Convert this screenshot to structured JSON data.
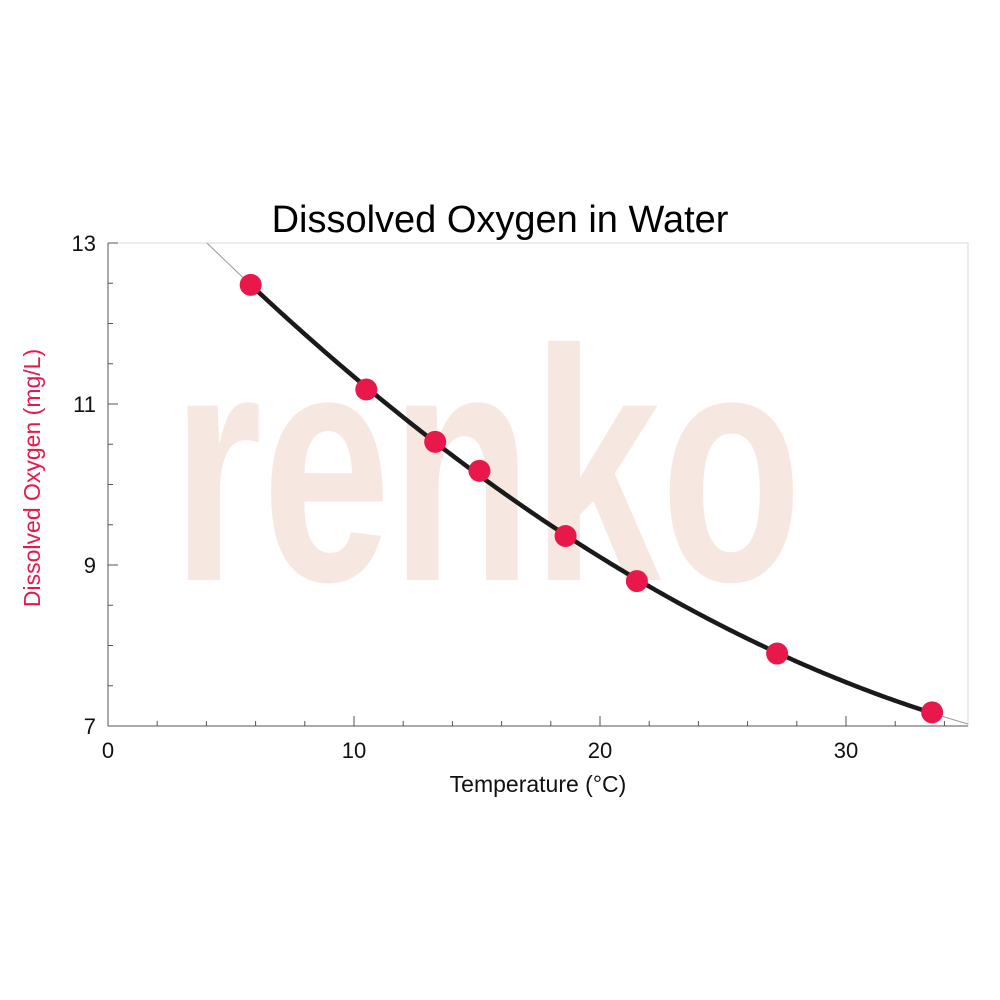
{
  "chart_data": {
    "type": "scatter",
    "title": "Dissolved Oxygen in Water",
    "xlabel": "Temperature (°C)",
    "ylabel": "Dissolved Oxygen (mg/L)",
    "xlim": [
      0,
      35
    ],
    "ylim": [
      7,
      13
    ],
    "x_ticks": [
      0,
      10,
      20,
      30
    ],
    "y_ticks": [
      7,
      9,
      11,
      13
    ],
    "grid": false,
    "watermark": "renko",
    "series": [
      {
        "x": [
          5.8,
          10.5,
          13.3,
          15.1,
          18.6,
          21.5,
          27.2,
          33.5
        ],
        "y": [
          12.48,
          11.18,
          10.53,
          10.17,
          9.36,
          8.8,
          7.9,
          7.17
        ],
        "color": "#e8194a"
      }
    ],
    "fit_curve": {
      "x_start": 5.8,
      "x_end": 33.5,
      "color": "#1a1a1a",
      "thin_line_color": "#999999"
    },
    "colors": {
      "ylabel": "#e8194a",
      "axes": "#555555"
    }
  }
}
